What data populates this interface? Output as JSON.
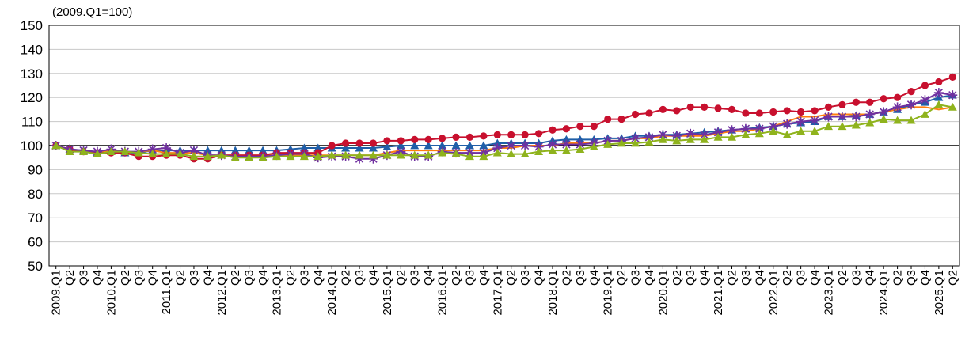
{
  "chart_data": {
    "type": "line",
    "unit_label": "(2009.Q1=100)",
    "ylim": [
      50,
      150
    ],
    "yticks": [
      50,
      60,
      70,
      80,
      90,
      100,
      110,
      120,
      130,
      140,
      150
    ],
    "grid": true,
    "reference_line": 100,
    "categories": [
      "2009.Q1",
      "Q2",
      "Q3",
      "Q4",
      "2010.Q1",
      "Q2",
      "Q3",
      "Q4",
      "2011.Q1",
      "Q2",
      "Q3",
      "Q4",
      "2012.Q1",
      "Q2",
      "Q3",
      "Q4",
      "2013.Q1",
      "Q2",
      "Q3",
      "Q4",
      "2014.Q1",
      "Q2",
      "Q3",
      "Q4",
      "2015.Q1",
      "Q2",
      "Q3",
      "Q4",
      "2016.Q1",
      "Q2",
      "Q3",
      "Q4",
      "2017.Q1",
      "Q2",
      "Q3",
      "Q4",
      "2018.Q1",
      "Q2",
      "Q3",
      "Q4",
      "2019.Q1",
      "Q2",
      "Q3",
      "Q4",
      "2020.Q1",
      "Q2",
      "Q3",
      "Q4",
      "2021.Q1",
      "Q2",
      "Q3",
      "Q4",
      "2022.Q1",
      "Q2",
      "Q3",
      "Q4",
      "2023.Q1",
      "Q2",
      "Q3",
      "Q4",
      "2024.Q1",
      "Q2",
      "Q3",
      "Q4",
      "2025.Q1",
      "Q2"
    ],
    "series": [
      {
        "color": "#1f5fa8",
        "marker": "triangle",
        "values": [
          100,
          98.5,
          98,
          97,
          98,
          97,
          97,
          98,
          98,
          98,
          98,
          98,
          98,
          98,
          98,
          98,
          98,
          98.5,
          99,
          99,
          99,
          99,
          99,
          99,
          99.5,
          100,
          100,
          100,
          100,
          100,
          100,
          100,
          101,
          101,
          101,
          101,
          102,
          102.5,
          102.5,
          102.5,
          103,
          103,
          104,
          104,
          104.5,
          104.5,
          105,
          105.5,
          106,
          106.5,
          107,
          107.5,
          108,
          109,
          109.5,
          110,
          112,
          112,
          112.5,
          113,
          114,
          115,
          117,
          118,
          120,
          121
        ]
      },
      {
        "color": "#ff7f0e",
        "marker": "none",
        "values": [
          100,
          98,
          97.5,
          97,
          98,
          97,
          97.5,
          98,
          97,
          97,
          97,
          96,
          96,
          96,
          96,
          96,
          96,
          96,
          96,
          96,
          96,
          96,
          96,
          96,
          97,
          98,
          98,
          98,
          98,
          98,
          98,
          98,
          99,
          99,
          100,
          100,
          100,
          101,
          101,
          101,
          102,
          102,
          103,
          103,
          104,
          104,
          104,
          104,
          105,
          106,
          106,
          107,
          108,
          110,
          112,
          112,
          113,
          113,
          113,
          113,
          114,
          115,
          116,
          116,
          115,
          116
        ]
      },
      {
        "color": "#c8102e",
        "marker": "circle",
        "values": [
          100,
          98.5,
          97.5,
          97,
          97,
          97,
          95.5,
          95.5,
          96,
          96,
          94.5,
          94.5,
          96,
          96,
          96,
          96,
          97,
          97,
          97,
          97,
          100,
          101,
          101,
          101,
          102,
          102,
          102.5,
          102.5,
          103,
          103.5,
          103.5,
          104,
          104.5,
          104.5,
          104.5,
          105,
          106.5,
          107,
          108,
          108,
          111,
          111,
          113,
          113.5,
          115,
          114.5,
          116,
          116,
          115.5,
          115,
          113.5,
          113.5,
          114,
          114.5,
          114,
          114.5,
          116,
          117,
          118,
          118,
          119.5,
          120,
          122.5,
          125,
          126.5,
          128.5
        ]
      },
      {
        "color": "#7030a0",
        "marker": "star",
        "values": [
          100,
          98.5,
          98,
          97.5,
          98.5,
          97.5,
          97.5,
          98.5,
          99,
          97,
          98,
          96,
          96,
          95.5,
          95.5,
          95.5,
          96,
          96.5,
          96.5,
          95,
          95.5,
          95.5,
          94.5,
          94.5,
          96,
          97.5,
          95.5,
          95.5,
          97.5,
          97,
          97,
          97,
          99,
          100,
          100,
          99.5,
          100.5,
          100.5,
          100.5,
          101,
          102,
          102,
          103,
          103.5,
          104.5,
          104,
          105,
          104.5,
          105.5,
          106.5,
          107,
          107,
          108,
          109,
          110,
          110.5,
          112,
          112,
          112,
          113,
          114,
          116,
          117,
          119,
          122,
          121
        ]
      },
      {
        "color": "#8fb31d",
        "marker": "triangle",
        "values": [
          100,
          97.5,
          97.5,
          96.5,
          97.5,
          97.5,
          97,
          96.5,
          96.5,
          96.5,
          95.5,
          95.5,
          96,
          95,
          95,
          95,
          95.5,
          95.5,
          95.5,
          95.5,
          96,
          96,
          96,
          96,
          96,
          96,
          96,
          96,
          97,
          96.5,
          95.5,
          95.5,
          97,
          96.5,
          96.5,
          97.5,
          98,
          98,
          98.5,
          99.5,
          100.5,
          101,
          101,
          101.5,
          102.5,
          102,
          102.5,
          102.5,
          103.5,
          103.5,
          104.5,
          105,
          106,
          104.5,
          106,
          106,
          108,
          108,
          108.5,
          109.5,
          111,
          110.5,
          110.5,
          113,
          117,
          116
        ]
      }
    ]
  }
}
